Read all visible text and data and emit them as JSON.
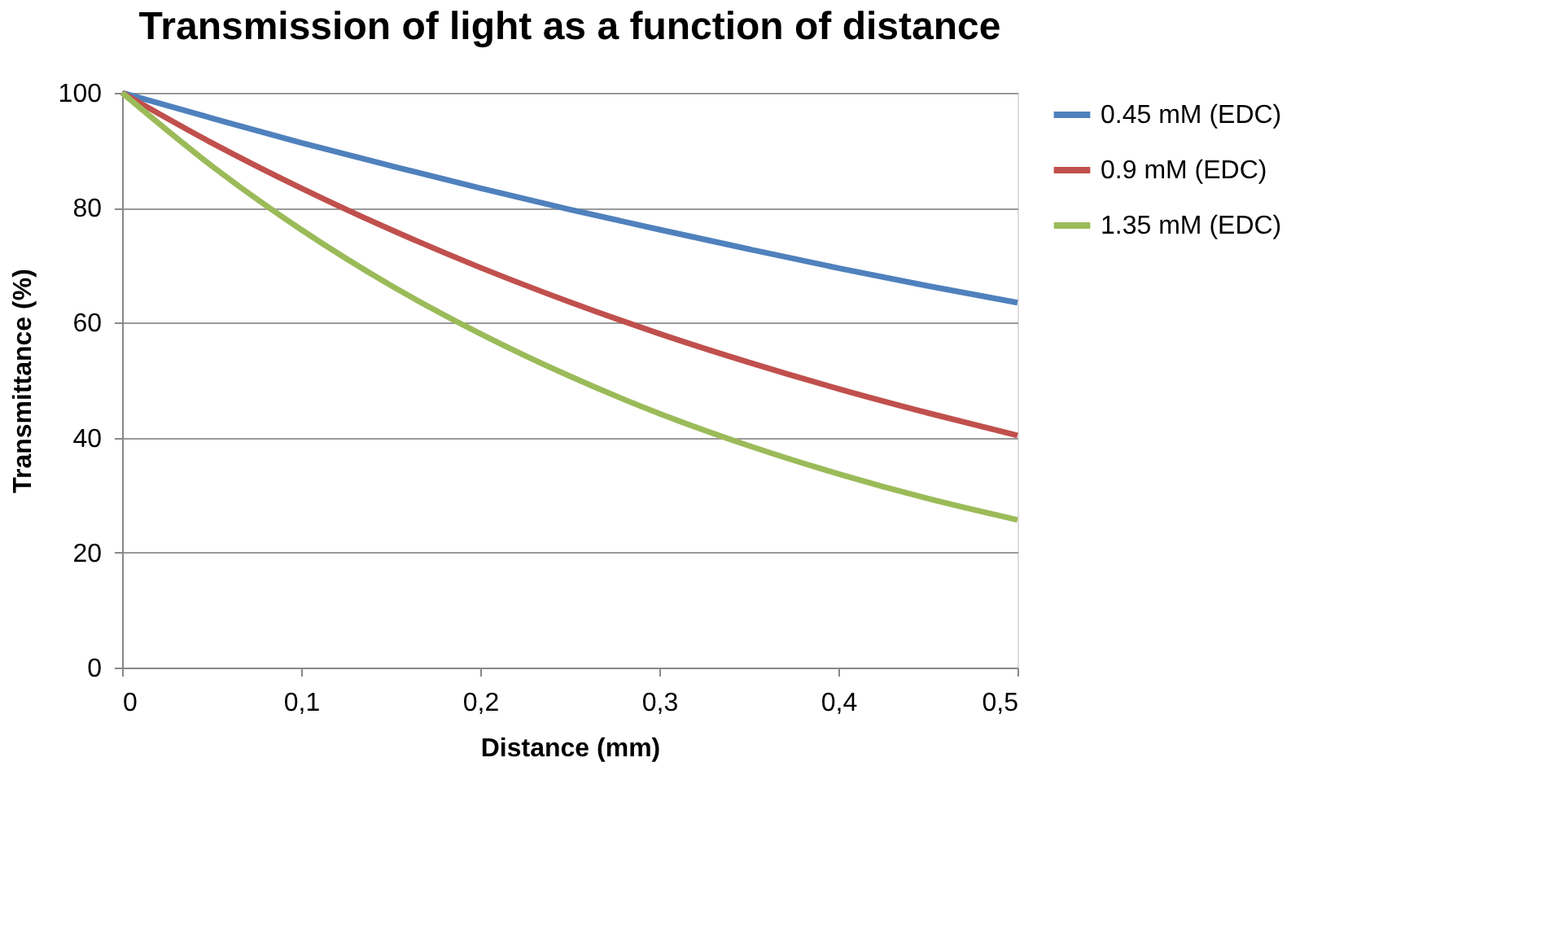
{
  "chart_data": {
    "type": "line",
    "title": "Transmission of light as a function of distance",
    "xlabel": "Distance (mm)",
    "ylabel": "Transmittance (%)",
    "x": [
      0,
      0.05,
      0.1,
      0.15,
      0.2,
      0.25,
      0.3,
      0.35,
      0.4,
      0.45,
      0.5
    ],
    "series": [
      {
        "name": "0.45 mM (EDC)",
        "color": "#4f81bd",
        "values": [
          100,
          95.6,
          91.3,
          87.3,
          83.4,
          79.7,
          76.2,
          72.8,
          69.5,
          66.4,
          63.5
        ]
      },
      {
        "name": "0.9 mM (EDC)",
        "color": "#c0504d",
        "values": [
          100,
          91.3,
          83.4,
          76.2,
          69.6,
          63.6,
          58.1,
          53.1,
          48.5,
          44.3,
          40.4
        ]
      },
      {
        "name": "1.35 mM (EDC)",
        "color": "#9bbb59",
        "values": [
          100,
          87.3,
          76.2,
          66.5,
          58.1,
          50.7,
          44.2,
          38.6,
          33.7,
          29.4,
          25.7
        ]
      }
    ],
    "xlim": [
      0,
      0.5
    ],
    "xticks": [
      0,
      {
        "value": 0.1,
        "label": "0,1"
      },
      {
        "value": 0.2,
        "label": "0,2"
      },
      {
        "value": 0.3,
        "label": "0,3"
      },
      {
        "value": 0.4,
        "label": "0,4"
      },
      {
        "value": 0.5,
        "label": "0,5"
      }
    ],
    "ylim": [
      0,
      100
    ],
    "yticks": [
      0,
      20,
      40,
      60,
      80,
      100
    ],
    "grid": "y",
    "legend": "right",
    "marker": "none",
    "line_style": "solid"
  }
}
